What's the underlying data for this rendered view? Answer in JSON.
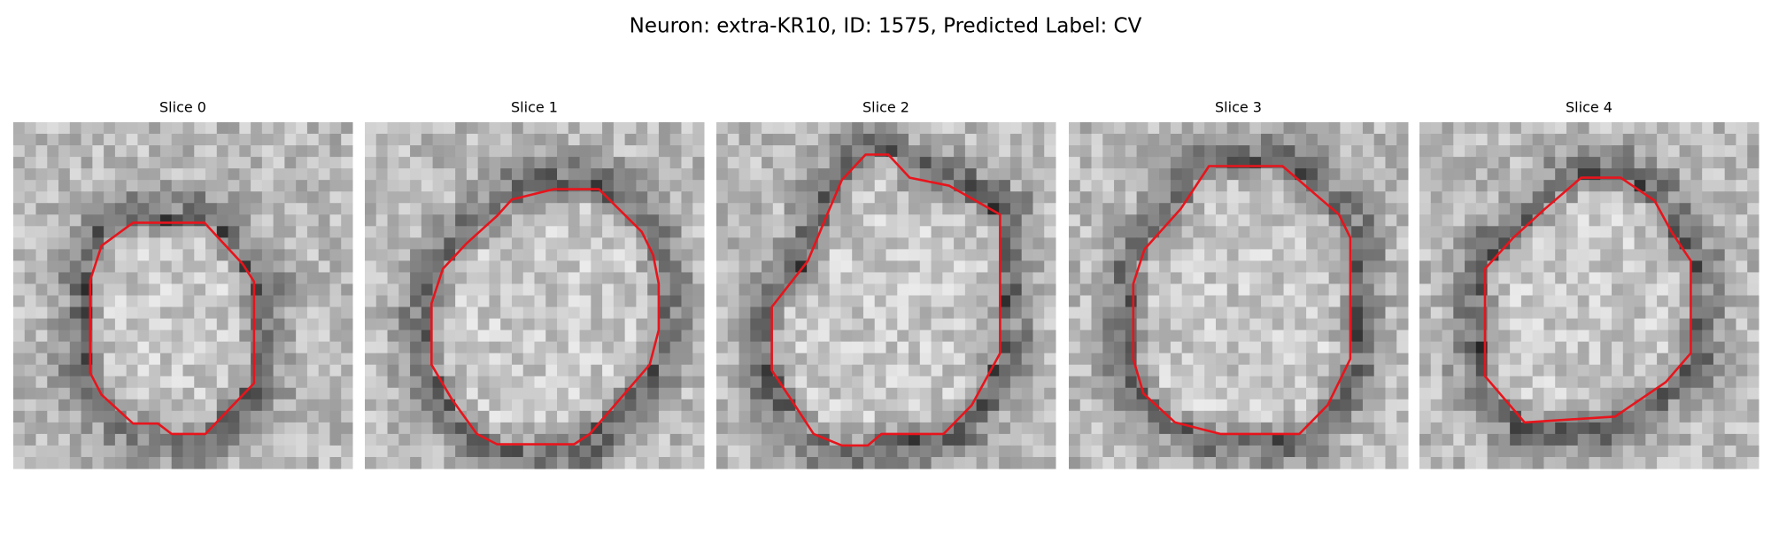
{
  "header": {
    "title": "Neuron: extra-KR10, ID: 1575, Predicted Label: CV"
  },
  "panels": [
    {
      "title": "Slice 0"
    },
    {
      "title": "Slice 1"
    },
    {
      "title": "Slice 2"
    },
    {
      "title": "Slice 3"
    },
    {
      "title": "Slice 4"
    }
  ]
}
